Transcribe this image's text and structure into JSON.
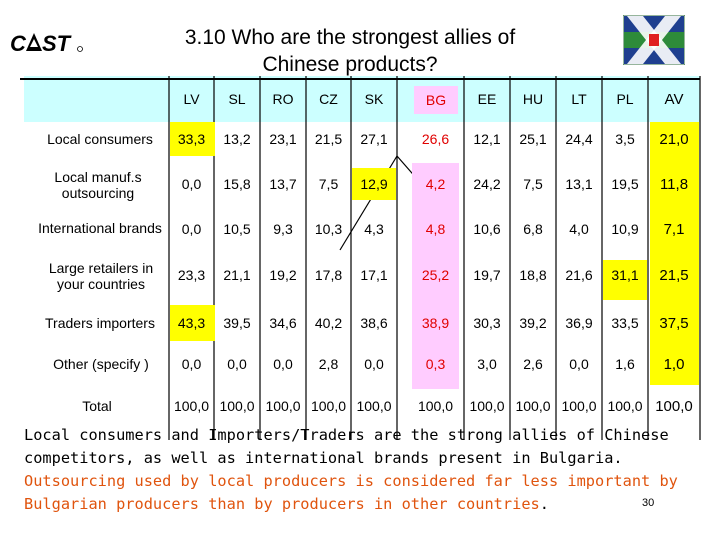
{
  "title_line1": "3.10 Who are the strongest allies of",
  "title_line2": "Chinese products?",
  "logo_text": "CAST",
  "columns": [
    "LV",
    "SL",
    "RO",
    "CZ",
    "SK",
    "BG",
    "EE",
    "HU",
    "LT",
    "PL",
    "AV"
  ],
  "rows": [
    {
      "label": "Local consumers",
      "values": [
        "33,3",
        "13,2",
        "23,1",
        "21,5",
        "27,1",
        "26,6",
        "12,1",
        "25,1",
        "24,4",
        "3,5",
        "21,0"
      ]
    },
    {
      "label": "Local manuf.s outsourcing",
      "values": [
        "0,0",
        "15,8",
        "13,7",
        "7,5",
        "12,9",
        "4,2",
        "24,2",
        "7,5",
        "13,1",
        "19,5",
        "11,8"
      ]
    },
    {
      "label": "International brands",
      "values": [
        "0,0",
        "10,5",
        "9,3",
        "10,3",
        "4,3",
        "4,8",
        "10,6",
        "6,8",
        "4,0",
        "10,9",
        "7,1"
      ]
    },
    {
      "label": "Large retailers in your countries",
      "values": [
        "23,3",
        "21,1",
        "19,2",
        "17,8",
        "17,1",
        "25,2",
        "19,7",
        "18,8",
        "21,6",
        "31,1",
        "21,5"
      ]
    },
    {
      "label": "Traders importers",
      "values": [
        "43,3",
        "39,5",
        "34,6",
        "40,2",
        "38,6",
        "38,9",
        "30,3",
        "39,2",
        "36,9",
        "33,5",
        "37,5"
      ]
    },
    {
      "label": "Other (specify )",
      "values": [
        "0,0",
        "0,0",
        "0,0",
        "2,8",
        "0,0",
        "0,3",
        "3,0",
        "2,6",
        "0,0",
        "1,6",
        "1,0"
      ]
    },
    {
      "label": "Total",
      "values": [
        "100,0",
        "100,0",
        "100,0",
        "100,0",
        "100,0",
        "100,0",
        "100,0",
        "100,0",
        "100,0",
        "100,0",
        "100,0"
      ]
    }
  ],
  "note_black": "Local consumers and Importers/Traders are the strong allies of Chinese competitors, as well as international brands present in Bulgaria.",
  "note_red": "Outsourcing used by local producers is considered far less important by Bulgarian producers than by producers in other countries",
  "note_end": ".",
  "page_number": "30",
  "colors": {
    "header_fill": "#ccffff",
    "highlight": "#ffff00",
    "bg_column": "#ffccff",
    "note_red": "#e0540e"
  }
}
